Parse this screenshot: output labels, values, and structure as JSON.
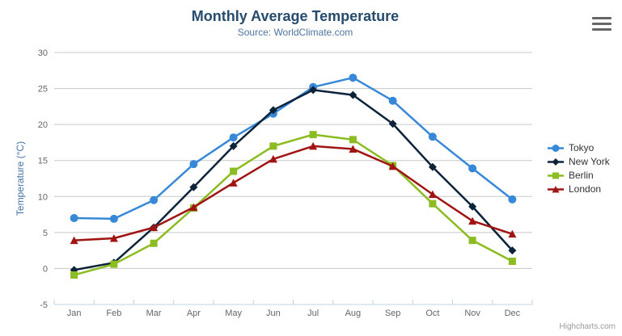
{
  "header": {
    "title": "Monthly Average Temperature",
    "subtitle": "Source: WorldClimate.com"
  },
  "toolbar": {
    "menu_icon": "hamburger-icon"
  },
  "credits": {
    "label": "Highcharts.com"
  },
  "colors": {
    "title": "#274b6d",
    "subtitle": "#4d759e",
    "axis_title": "#4572a7",
    "tick_label": "#666666",
    "grid": "#c8c8c8",
    "axis_line": "#c0d0e0",
    "legend_text": "#333333",
    "credits": "#999999"
  },
  "chart_data": {
    "type": "line",
    "title": "Monthly Average Temperature",
    "subtitle": "Source: WorldClimate.com",
    "categories": [
      "Jan",
      "Feb",
      "Mar",
      "Apr",
      "May",
      "Jun",
      "Jul",
      "Aug",
      "Sep",
      "Oct",
      "Nov",
      "Dec"
    ],
    "xlabel": "",
    "ylabel": "Temperature (°C)",
    "ylim": [
      -5,
      30
    ],
    "ytick_interval": 5,
    "grid": true,
    "legend_position": "right",
    "series": [
      {
        "name": "Tokyo",
        "color": "#3789d8",
        "marker": "circle",
        "values": [
          7.0,
          6.9,
          9.5,
          14.5,
          18.2,
          21.5,
          25.2,
          26.5,
          23.3,
          18.3,
          13.9,
          9.6
        ]
      },
      {
        "name": "New York",
        "color": "#0d233a",
        "marker": "diamond",
        "values": [
          -0.2,
          0.8,
          5.7,
          11.3,
          17.0,
          22.0,
          24.8,
          24.1,
          20.1,
          14.1,
          8.6,
          2.5
        ]
      },
      {
        "name": "Berlin",
        "color": "#8bbc21",
        "marker": "square",
        "values": [
          -0.9,
          0.6,
          3.5,
          8.4,
          13.5,
          17.0,
          18.6,
          17.9,
          14.3,
          9.0,
          3.9,
          1.0
        ]
      },
      {
        "name": "London",
        "color": "#a01413",
        "marker": "triangle",
        "values": [
          3.9,
          4.2,
          5.7,
          8.5,
          11.9,
          15.2,
          17.0,
          16.6,
          14.2,
          10.3,
          6.6,
          4.8
        ]
      }
    ]
  }
}
